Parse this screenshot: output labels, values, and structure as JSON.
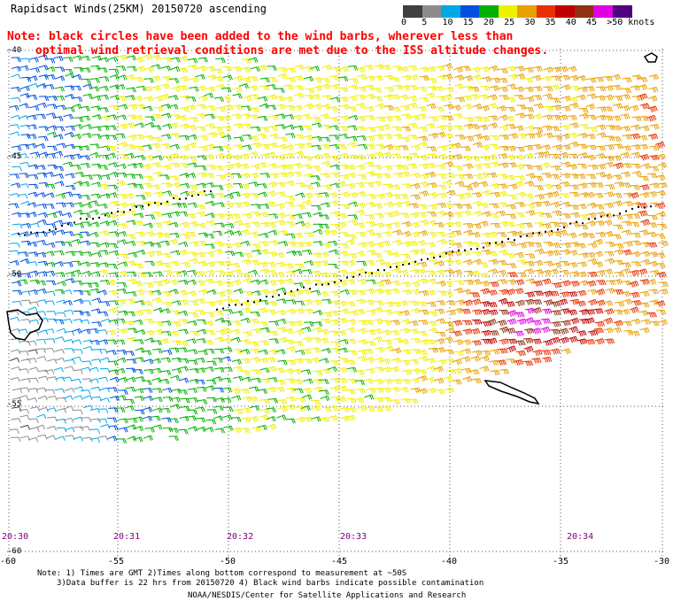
{
  "title": "Rapidsact Winds(25KM) 20150720 ascending",
  "note_lines": [
    "Note: black circles have been added to the wind barbs, wherever less than",
    "optimal wind retrieval conditions are met due to the ISS altitude changes."
  ],
  "colorbar": {
    "labels": [
      "0",
      "5",
      "10",
      "15",
      "20",
      "25",
      "30",
      "35",
      "40",
      "45",
      ">50 knots"
    ],
    "colors": [
      "#404040",
      "#8c8c8c",
      "#00a8e8",
      "#0050e0",
      "#00b000",
      "#f0f000",
      "#e8a000",
      "#e83000",
      "#c00000",
      "#903010",
      "#e000e0",
      "#500080"
    ]
  },
  "lat_labels": [
    "-40",
    "-45",
    "-50",
    "-55",
    "-60"
  ],
  "lon_labels": [
    "-60",
    "-55",
    "-50",
    "-45",
    "-40",
    "-35",
    "-30"
  ],
  "time_labels": [
    "20:30",
    "20:31",
    "20:32",
    "20:33",
    "20:34"
  ],
  "footer": {
    "line1": "Note: 1) Times are GMT 2)Times along bottom correspond to measurement at ~50S",
    "line2": "3)Data buffer is 22 hrs from 20150720 4) Black wind barbs indicate possible contamination",
    "line3": "NOAA/NESDIS/Center for Satellite Applications and Research"
  }
}
